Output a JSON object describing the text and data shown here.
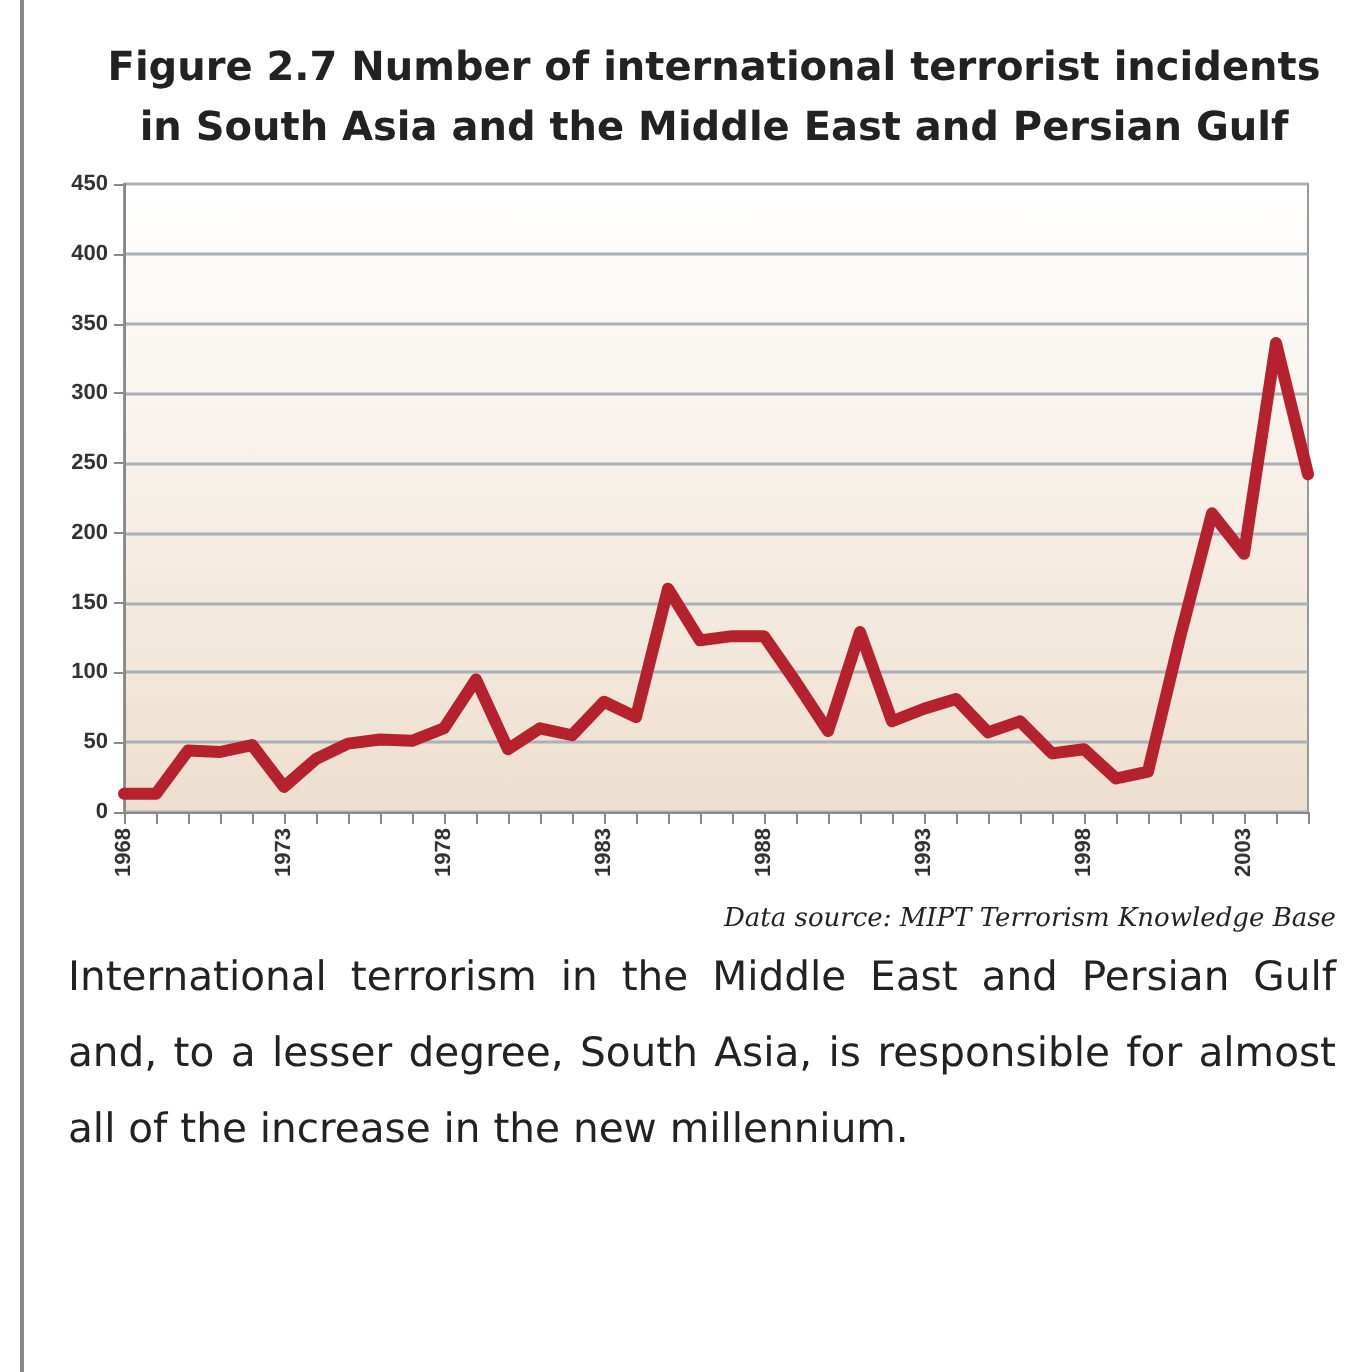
{
  "chart_data": {
    "type": "line",
    "title": "Figure 2.7 Number of international terrorist incidents in South Asia and the Middle East and Persian Gulf",
    "x": [
      1968,
      1969,
      1970,
      1971,
      1972,
      1973,
      1974,
      1975,
      1976,
      1977,
      1978,
      1979,
      1980,
      1981,
      1982,
      1983,
      1984,
      1985,
      1986,
      1987,
      1988,
      1989,
      1990,
      1991,
      1992,
      1993,
      1994,
      1995,
      1996,
      1997,
      1998,
      1999,
      2000,
      2001,
      2002,
      2003,
      2004,
      2005
    ],
    "series": [
      {
        "color": "#b5222e",
        "values": [
          13,
          13,
          44,
          43,
          48,
          18,
          38,
          49,
          52,
          51,
          60,
          95,
          45,
          60,
          55,
          79,
          68,
          160,
          123,
          126,
          126,
          93,
          58,
          129,
          65,
          74,
          81,
          57,
          65,
          42,
          45,
          24,
          29,
          125,
          214,
          185,
          336,
          242
        ]
      }
    ],
    "xlim": [
      1968,
      2005
    ],
    "xticks": [
      1968,
      {
        "value": 1969,
        "label": null
      },
      {
        "value": 1970,
        "label": null
      },
      {
        "value": 1971,
        "label": null
      },
      {
        "value": 1972,
        "label": null
      },
      1973,
      {
        "value": 1974,
        "label": null
      },
      {
        "value": 1975,
        "label": null
      },
      {
        "value": 1976,
        "label": null
      },
      {
        "value": 1977,
        "label": null
      },
      1978,
      {
        "value": 1979,
        "label": null
      },
      {
        "value": 1980,
        "label": null
      },
      {
        "value": 1981,
        "label": null
      },
      {
        "value": 1982,
        "label": null
      },
      1983,
      {
        "value": 1984,
        "label": null
      },
      {
        "value": 1985,
        "label": null
      },
      {
        "value": 1986,
        "label": null
      },
      {
        "value": 1987,
        "label": null
      },
      1988,
      {
        "value": 1989,
        "label": null
      },
      {
        "value": 1990,
        "label": null
      },
      {
        "value": 1991,
        "label": null
      },
      {
        "value": 1992,
        "label": null
      },
      1993,
      {
        "value": 1994,
        "label": null
      },
      {
        "value": 1995,
        "label": null
      },
      {
        "value": 1996,
        "label": null
      },
      {
        "value": 1997,
        "label": null
      },
      1998,
      {
        "value": 1999,
        "label": null
      },
      {
        "value": 2000,
        "label": null
      },
      {
        "value": 2001,
        "label": null
      },
      {
        "value": 2002,
        "label": null
      },
      2003,
      {
        "value": 2004,
        "label": null
      },
      {
        "value": 2005,
        "label": null
      }
    ],
    "ylim": [
      0,
      450
    ],
    "yticks": [
      0,
      50,
      100,
      150,
      200,
      250,
      300,
      350,
      400,
      450
    ],
    "grid": "y",
    "marker": "none",
    "line_style": "solid",
    "annotations": [
      "Data source: MIPT Terrorism Knowledge Base",
      "International terrorism in the Middle East and Persian Gulf and, to a lesser degree, South Asia, is responsible for almost all of the increase in the new millennium."
    ]
  }
}
